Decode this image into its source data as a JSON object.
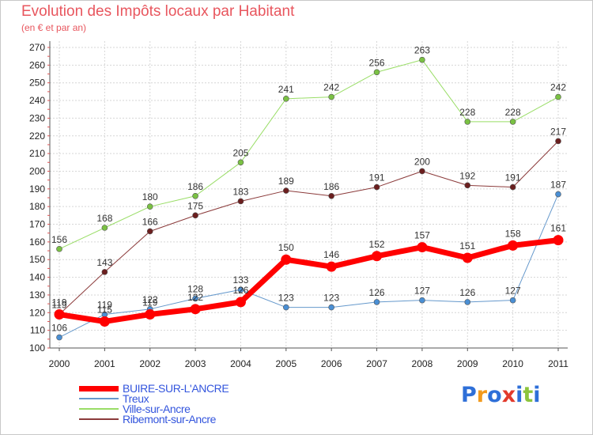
{
  "header": {
    "title": "Evolution des Impôts locaux par Habitant",
    "subtitle": "(en € et par an)"
  },
  "logo": {
    "letters": [
      {
        "char": "P",
        "color": "#2e6fd8"
      },
      {
        "char": "r",
        "color": "#f29a1e"
      },
      {
        "char": "o",
        "color": "#2e6fd8"
      },
      {
        "char": "x",
        "color": "#e23a2c"
      },
      {
        "char": "i",
        "color": "#2e6fd8"
      },
      {
        "char": "t",
        "color": "#8cc43c"
      },
      {
        "char": "i",
        "color": "#2e6fd8"
      }
    ]
  },
  "chart_data": {
    "type": "line",
    "title": "Evolution des Impôts locaux par Habitant",
    "subtitle": "(en € et par an)",
    "x": [
      "2000",
      "2001",
      "2002",
      "2003",
      "2004",
      "2005",
      "2006",
      "2007",
      "2008",
      "2009",
      "2010",
      "2011"
    ],
    "ylim": [
      100,
      270
    ],
    "yticks": [
      100,
      110,
      120,
      130,
      140,
      150,
      160,
      170,
      180,
      190,
      200,
      210,
      220,
      230,
      240,
      250,
      260,
      270
    ],
    "grid": true,
    "legend_position": "bottom-left",
    "series": [
      {
        "name": "Ville-sur-Ancre",
        "color": "#99dd66",
        "point_color": "#7ac143",
        "width": 1,
        "point_radius": 3.5,
        "values": [
          156,
          168,
          180,
          186,
          205,
          241,
          242,
          256,
          263,
          228,
          228,
          242
        ]
      },
      {
        "name": "Ribemont-sur-Ancre",
        "color": "#8b3a3a",
        "point_color": "#6b1e1e",
        "width": 1,
        "point_radius": 3.5,
        "values": [
          119,
          143,
          166,
          175,
          183,
          189,
          186,
          191,
          200,
          192,
          191,
          217
        ]
      },
      {
        "name": "Treux",
        "color": "#6699cc",
        "point_color": "#4a8fd4",
        "width": 1,
        "point_radius": 3.5,
        "values": [
          106,
          119,
          122,
          128,
          133,
          123,
          123,
          126,
          127,
          126,
          127,
          187
        ]
      },
      {
        "name": "BUIRE-SUR-L'ANCRE",
        "color": "#ff0000",
        "point_color": "#ff0000",
        "width": 7,
        "point_radius": 6.5,
        "values": [
          119,
          115,
          119,
          122,
          126,
          150,
          146,
          152,
          157,
          151,
          158,
          161
        ]
      }
    ],
    "legend": [
      {
        "name": "BUIRE-SUR-L'ANCRE",
        "color": "#ff0000",
        "thickness": 7
      },
      {
        "name": "Treux",
        "color": "#6699cc",
        "thickness": 2
      },
      {
        "name": "Ville-sur-Ancre",
        "color": "#99dd66",
        "thickness": 2
      },
      {
        "name": "Ribemont-sur-Ancre",
        "color": "#8b3a3a",
        "thickness": 2
      }
    ]
  }
}
